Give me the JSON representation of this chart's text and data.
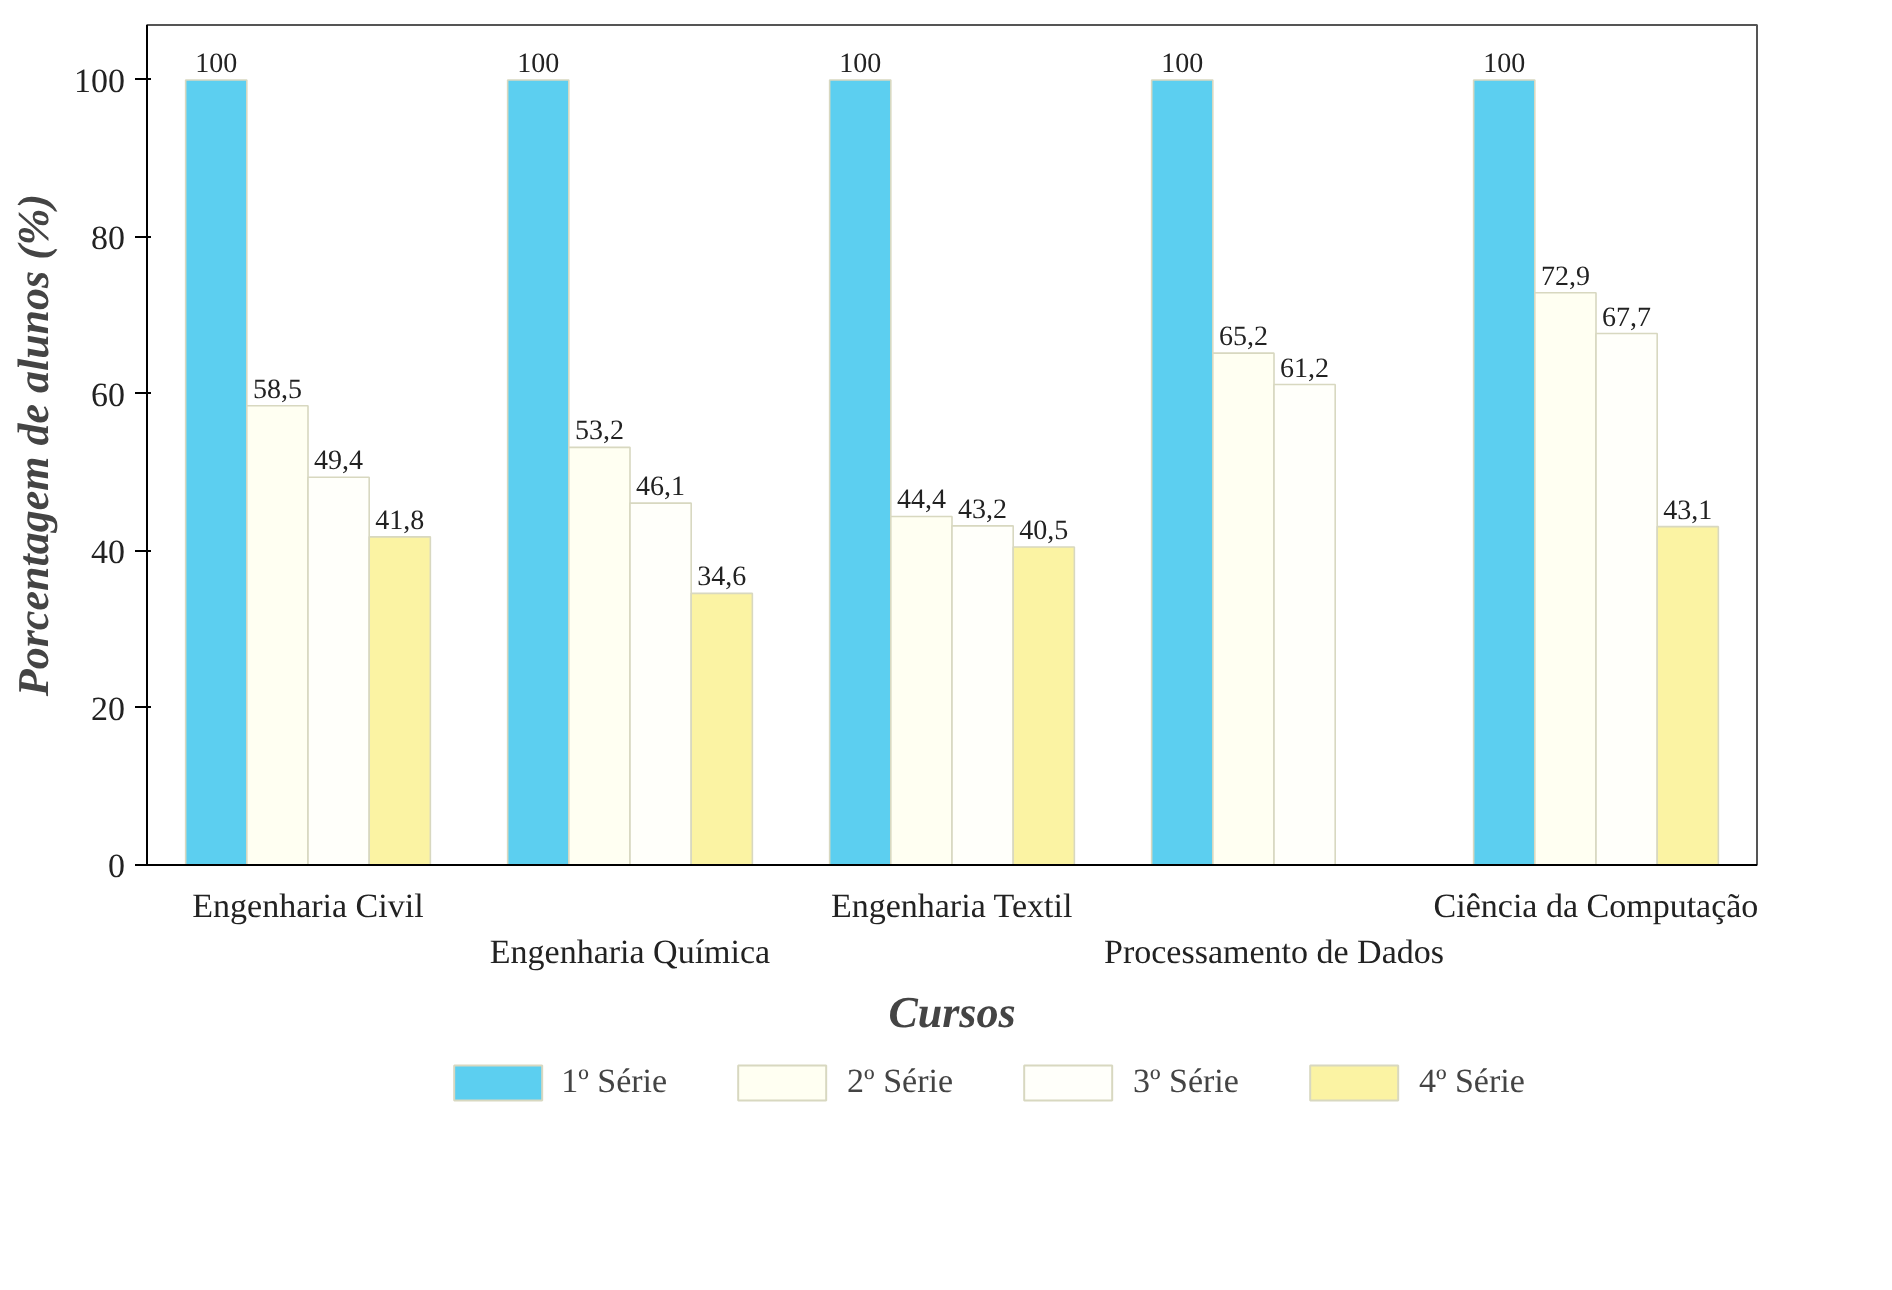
{
  "chart_data": {
    "type": "bar",
    "xlabel": "Cursos",
    "ylabel": "Porcentagem de alunos (%)",
    "categories": [
      "Engenharia Civil",
      "Engenharia Química",
      "Engenharia Textil",
      "Processamento de Dados",
      "Ciência da Computação"
    ],
    "series": [
      {
        "name": "1º Série",
        "color": "#5ccff0",
        "values": [
          100,
          100,
          100,
          100,
          100
        ],
        "value_labels": [
          "100",
          "100",
          "100",
          "100",
          "100"
        ]
      },
      {
        "name": "2º Série",
        "color": "#fffff2",
        "values": [
          58.5,
          53.2,
          44.4,
          65.2,
          72.9
        ],
        "value_labels": [
          "58,5",
          "53,2",
          "44,4",
          "65,2",
          "72,9"
        ]
      },
      {
        "name": "3º Série",
        "color": "#fffffa",
        "values": [
          49.4,
          46.1,
          43.2,
          61.2,
          67.7
        ],
        "value_labels": [
          "49,4",
          "46,1",
          "43,2",
          "61,2",
          "67,7"
        ]
      },
      {
        "name": "4º Série",
        "color": "#fbf3a3",
        "values": [
          41.8,
          34.6,
          40.5,
          null,
          43.1
        ],
        "value_labels": [
          "41,8",
          "34,6",
          "40,5",
          null,
          "43,1"
        ]
      }
    ],
    "ylim": [
      0,
      107
    ],
    "yticks": [
      0,
      20,
      40,
      60,
      80,
      100
    ],
    "grid": false,
    "legend": "bottom"
  }
}
